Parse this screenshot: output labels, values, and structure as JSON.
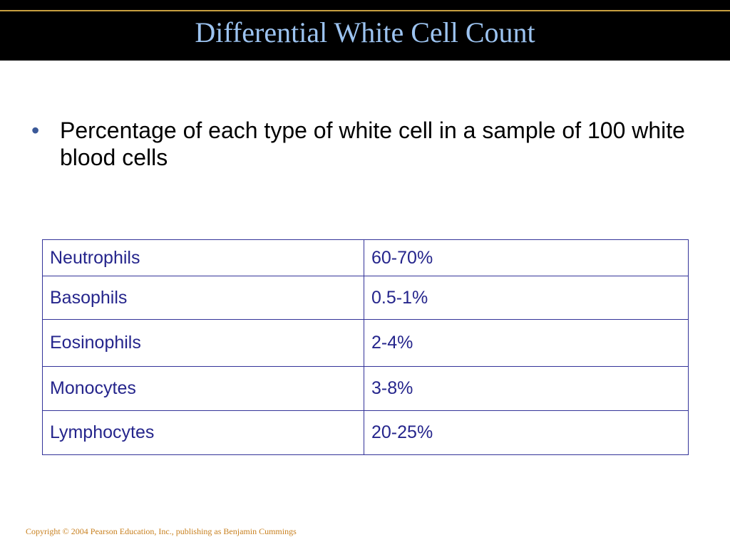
{
  "slide": {
    "title": "Differential White Cell Count",
    "bullet": "Percentage of each type of white cell in a sample of 100 white blood cells",
    "copyright": "Copyright © 2004 Pearson Education, Inc., publishing as Benjamin Cummings"
  },
  "table": {
    "rows": [
      {
        "cell_type": "Neutrophils",
        "percentage": "60-70%"
      },
      {
        "cell_type": "Basophils",
        "percentage": "0.5-1%"
      },
      {
        "cell_type": "Eosinophils",
        "percentage": "2-4%"
      },
      {
        "cell_type": "Monocytes",
        "percentage": "3-8%"
      },
      {
        "cell_type": "Lymphocytes",
        "percentage": "20-25%"
      }
    ]
  },
  "colors": {
    "title_bar": "#000000",
    "title_text": "#9cc3f0",
    "table_border": "#333399",
    "table_text": "#25258c",
    "copyright_text": "#c8801f"
  }
}
